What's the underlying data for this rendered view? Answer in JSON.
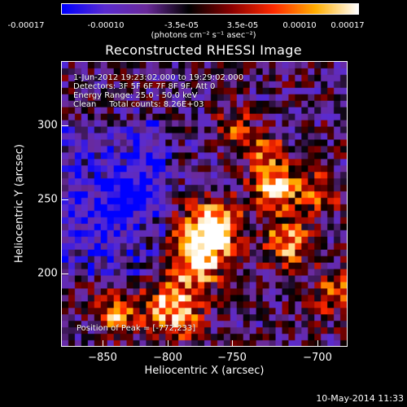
{
  "colorbar": {
    "ticks": [
      "-0.00017",
      "-0.00010",
      "-3.5e-05",
      "3.5e-05",
      "0.00010",
      "0.00017"
    ],
    "units": "(photons cm⁻² s⁻¹ asec⁻²)"
  },
  "title": "Reconstructed RHESSI Image",
  "info": {
    "time_range": "1-Jun-2012 19:23:02.000 to 19:29:02.000",
    "detectors": "Detectors: 3F 5F 6F 7F 8F 9F, Att 0",
    "energy_range": "Energy Range: 25.0 - 50.0 keV",
    "clean_counts": "Clean     Total counts: 8.26E+03",
    "peak": "Position of Peak = [-772,233]"
  },
  "axes": {
    "xlabel": "Heliocentric X (arcsec)",
    "ylabel": "Heliocentric Y (arcsec)",
    "xticks": [
      "−850",
      "−800",
      "−750",
      "−700"
    ],
    "yticks": [
      "300",
      "250",
      "200"
    ]
  },
  "timestamp": "10-May-2014 11:33",
  "colors": {
    "cmap": [
      "#0000ff",
      "#5a2bd0",
      "#6a2a9a",
      "#000000",
      "#8a0000",
      "#ff2a00",
      "#ffae00",
      "#ffffff"
    ]
  }
}
